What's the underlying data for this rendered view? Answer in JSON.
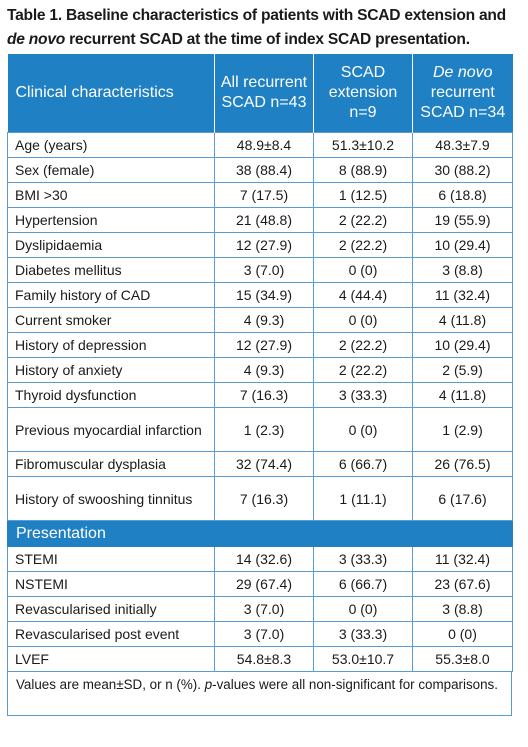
{
  "caption": {
    "part1": "Table 1. Baseline characteristics of patients with SCAD extension and ",
    "italic": "de novo",
    "part2": " recurrent SCAD at the time of index SCAD presentation."
  },
  "headers": {
    "col1": "Clinical characteristics",
    "col2": "All recurrent SCAD n=43",
    "col3": "SCAD extension n=9",
    "col4_italic": "De novo",
    "col4_rest": " recurrent SCAD n=34"
  },
  "rows": [
    {
      "label": "Age (years)",
      "all": "48.9±8.4",
      "ext": "51.3±10.2",
      "denovo": "48.3±7.9"
    },
    {
      "label": "Sex (female)",
      "all": "38 (88.4)",
      "ext": "8 (88.9)",
      "denovo": "30 (88.2)"
    },
    {
      "label": "BMI >30",
      "all": "7 (17.5)",
      "ext": "1 (12.5)",
      "denovo": "6 (18.8)"
    },
    {
      "label": "Hypertension",
      "all": "21 (48.8)",
      "ext": "2 (22.2)",
      "denovo": "19 (55.9)"
    },
    {
      "label": "Dyslipidaemia",
      "all": "12 (27.9)",
      "ext": "2 (22.2)",
      "denovo": "10 (29.4)"
    },
    {
      "label": "Diabetes mellitus",
      "all": "3 (7.0)",
      "ext": "0 (0)",
      "denovo": "3 (8.8)"
    },
    {
      "label": "Family history of CAD",
      "all": "15 (34.9)",
      "ext": "4 (44.4)",
      "denovo": "11 (32.4)"
    },
    {
      "label": "Current smoker",
      "all": "4 (9.3)",
      "ext": "0 (0)",
      "denovo": "4 (11.8)"
    },
    {
      "label": "History of depression",
      "all": "12 (27.9)",
      "ext": "2 (22.2)",
      "denovo": "10 (29.4)"
    },
    {
      "label": "History of anxiety",
      "all": "4 (9.3)",
      "ext": "2 (22.2)",
      "denovo": "2 (5.9)"
    },
    {
      "label": "Thyroid dysfunction",
      "all": "7 (16.3)",
      "ext": "3 (33.3)",
      "denovo": "4 (11.8)"
    },
    {
      "label": "Previous myocardial infarction",
      "all": "1 (2.3)",
      "ext": "0 (0)",
      "denovo": "1 (2.9)"
    },
    {
      "label": "Fibromuscular dysplasia",
      "all": "32 (74.4)",
      "ext": "6 (66.7)",
      "denovo": "26 (76.5)"
    },
    {
      "label": "History of swooshing tinnitus",
      "all": "7 (16.3)",
      "ext": "1 (11.1)",
      "denovo": "6 (17.6)"
    }
  ],
  "section": "Presentation",
  "rows2": [
    {
      "label": "STEMI",
      "all": "14 (32.6)",
      "ext": "3 (33.3)",
      "denovo": "11 (32.4)"
    },
    {
      "label": "NSTEMI",
      "all": "29 (67.4)",
      "ext": "6 (66.7)",
      "denovo": "23 (67.6)"
    },
    {
      "label": "Revascularised initially",
      "all": "3 (7.0)",
      "ext": "0 (0)",
      "denovo": "3 (8.8)"
    },
    {
      "label": "Revascularised post event",
      "all": "3 (7.0)",
      "ext": "3 (33.3)",
      "denovo": "0 (0)"
    },
    {
      "label": "LVEF",
      "all": "54.8±8.3",
      "ext": "53.0±10.7",
      "denovo": "55.3±8.0"
    }
  ],
  "note": {
    "part1": "Values are mean±SD, or n (%). ",
    "italic": "p",
    "part2": "-values were all non-significant for comparisons."
  }
}
